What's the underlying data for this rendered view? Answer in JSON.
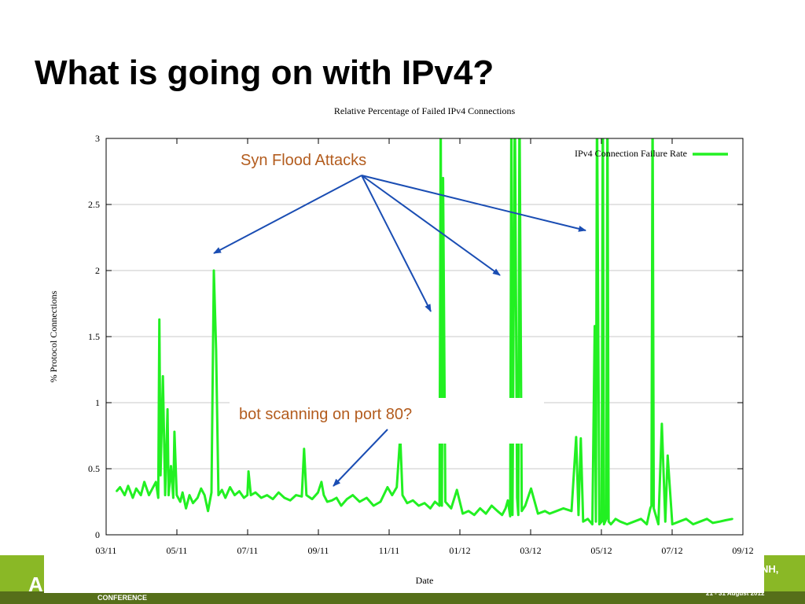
{
  "slide": {
    "title": "What is going on with IPv4?"
  },
  "footer": {
    "logo_text": "A",
    "conference_label": "CONFERENCE",
    "city_fragment": "NH,",
    "date_fragment": "21 - 31 August 2012"
  },
  "chart_data": {
    "type": "line",
    "title": "Relative Percentage of Failed IPv4 Connections",
    "xlabel": "Date",
    "ylabel": "% Protocol Connections",
    "ylim": [
      0,
      3
    ],
    "xlim": [
      "2011-03-01",
      "2012-09-01"
    ],
    "xticks": [
      "03/11",
      "05/11",
      "07/11",
      "09/11",
      "11/11",
      "01/12",
      "03/12",
      "05/12",
      "07/12",
      "09/12"
    ],
    "yticks": [
      "0",
      "0.5",
      "1",
      "1.5",
      "2",
      "2.5",
      "3"
    ],
    "grid": "horizontal",
    "legend_position": "top-right",
    "series": [
      {
        "name": "IPv4 Connection Failure Rate",
        "color": "#22f022",
        "x": [
          "2011-03-10",
          "2011-03-13",
          "2011-03-17",
          "2011-03-20",
          "2011-03-24",
          "2011-03-27",
          "2011-03-31",
          "2011-04-03",
          "2011-04-07",
          "2011-04-10",
          "2011-04-13",
          "2011-04-15",
          "2011-04-16",
          "2011-04-17",
          "2011-04-19",
          "2011-04-21",
          "2011-04-23",
          "2011-04-24",
          "2011-04-26",
          "2011-04-28",
          "2011-04-29",
          "2011-05-01",
          "2011-05-04",
          "2011-05-06",
          "2011-05-09",
          "2011-05-12",
          "2011-05-15",
          "2011-05-19",
          "2011-05-22",
          "2011-05-25",
          "2011-05-28",
          "2011-05-31",
          "2011-06-02",
          "2011-06-04",
          "2011-06-06",
          "2011-06-09",
          "2011-06-12",
          "2011-06-16",
          "2011-06-20",
          "2011-06-24",
          "2011-06-28",
          "2011-07-01",
          "2011-07-02",
          "2011-07-04",
          "2011-07-08",
          "2011-07-13",
          "2011-07-18",
          "2011-07-23",
          "2011-07-28",
          "2011-08-02",
          "2011-08-07",
          "2011-08-12",
          "2011-08-17",
          "2011-08-19",
          "2011-08-21",
          "2011-08-26",
          "2011-08-31",
          "2011-09-03",
          "2011-09-05",
          "2011-09-08",
          "2011-09-12",
          "2011-09-16",
          "2011-09-20",
          "2011-09-25",
          "2011-09-30",
          "2011-10-06",
          "2011-10-12",
          "2011-10-18",
          "2011-10-24",
          "2011-10-30",
          "2011-11-03",
          "2011-11-07",
          "2011-11-10",
          "2011-11-12",
          "2011-11-16",
          "2011-11-21",
          "2011-11-26",
          "2011-12-01",
          "2011-12-06",
          "2011-12-10",
          "2011-12-14",
          "2011-12-15",
          "2011-12-16",
          "2011-12-17",
          "2011-12-19",
          "2011-12-24",
          "2011-12-29",
          "2012-01-03",
          "2012-01-08",
          "2012-01-13",
          "2012-01-18",
          "2012-01-23",
          "2012-01-28",
          "2012-02-02",
          "2012-02-06",
          "2012-02-09",
          "2012-02-11",
          "2012-02-13",
          "2012-02-14",
          "2012-02-15",
          "2012-02-17",
          "2012-02-19",
          "2012-02-20",
          "2012-02-21",
          "2012-02-23",
          "2012-02-26",
          "2012-03-02",
          "2012-03-08",
          "2012-03-14",
          "2012-03-18",
          "2012-03-24",
          "2012-03-30",
          "2012-04-06",
          "2012-04-10",
          "2012-04-12",
          "2012-04-14",
          "2012-04-16",
          "2012-04-20",
          "2012-04-24",
          "2012-04-26",
          "2012-04-27",
          "2012-04-28",
          "2012-04-30",
          "2012-05-02",
          "2012-05-03",
          "2012-05-04",
          "2012-05-06",
          "2012-05-07",
          "2012-05-08",
          "2012-05-10",
          "2012-05-12",
          "2012-05-14",
          "2012-05-18",
          "2012-05-24",
          "2012-05-30",
          "2012-06-05",
          "2012-06-10",
          "2012-06-13",
          "2012-06-14",
          "2012-06-15",
          "2012-06-16",
          "2012-06-20",
          "2012-06-23",
          "2012-06-26",
          "2012-06-28",
          "2012-07-02",
          "2012-07-08",
          "2012-07-14",
          "2012-07-20",
          "2012-07-26",
          "2012-08-01",
          "2012-08-06",
          "2012-08-12",
          "2012-08-17",
          "2012-08-23"
        ],
        "values": [
          0.33,
          0.36,
          0.3,
          0.37,
          0.28,
          0.35,
          0.3,
          0.4,
          0.3,
          0.35,
          0.4,
          0.28,
          1.63,
          0.45,
          1.2,
          0.3,
          0.95,
          0.3,
          0.52,
          0.28,
          0.78,
          0.3,
          0.25,
          0.32,
          0.2,
          0.3,
          0.24,
          0.28,
          0.35,
          0.3,
          0.18,
          0.32,
          2.0,
          1.4,
          0.3,
          0.34,
          0.28,
          0.36,
          0.3,
          0.33,
          0.28,
          0.3,
          0.48,
          0.3,
          0.32,
          0.28,
          0.3,
          0.27,
          0.32,
          0.28,
          0.26,
          0.3,
          0.29,
          0.65,
          0.3,
          0.27,
          0.32,
          0.4,
          0.3,
          0.25,
          0.26,
          0.28,
          0.22,
          0.27,
          0.3,
          0.25,
          0.28,
          0.22,
          0.25,
          0.36,
          0.3,
          0.36,
          0.75,
          0.3,
          0.24,
          0.26,
          0.22,
          0.24,
          0.2,
          0.25,
          0.22,
          3.2,
          0.22,
          2.7,
          0.25,
          0.2,
          0.34,
          0.16,
          0.18,
          0.15,
          0.2,
          0.16,
          0.22,
          0.18,
          0.15,
          0.2,
          0.26,
          0.14,
          3.3,
          0.15,
          3.3,
          0.28,
          0.15,
          3.3,
          0.18,
          0.22,
          0.35,
          0.16,
          0.18,
          0.16,
          0.18,
          0.2,
          0.18,
          0.74,
          0.15,
          0.73,
          0.1,
          0.12,
          0.08,
          1.58,
          0.1,
          3.3,
          0.08,
          0.1,
          3.3,
          0.08,
          0.12,
          3.3,
          0.1,
          0.08,
          0.1,
          0.12,
          0.1,
          0.08,
          0.1,
          0.12,
          0.08,
          0.2,
          0.22,
          3.3,
          0.2,
          0.08,
          0.84,
          0.1,
          0.6,
          0.08,
          0.1,
          0.12,
          0.08,
          0.1,
          0.12,
          0.09,
          0.1,
          0.11,
          0.12
        ]
      }
    ],
    "annotations": [
      {
        "text": "Syn Flood Attacks",
        "color": "#b35c1e",
        "arrow_color": "#1a4db3",
        "targets": [
          "2011-06-06",
          "2011-12-15",
          "2012-02-14",
          "2012-04-24"
        ]
      },
      {
        "text": "bot scanning on port 80?",
        "color": "#b35c1e",
        "arrow_color": "#1a4db3",
        "targets": [
          "2011-09-12"
        ]
      }
    ]
  }
}
